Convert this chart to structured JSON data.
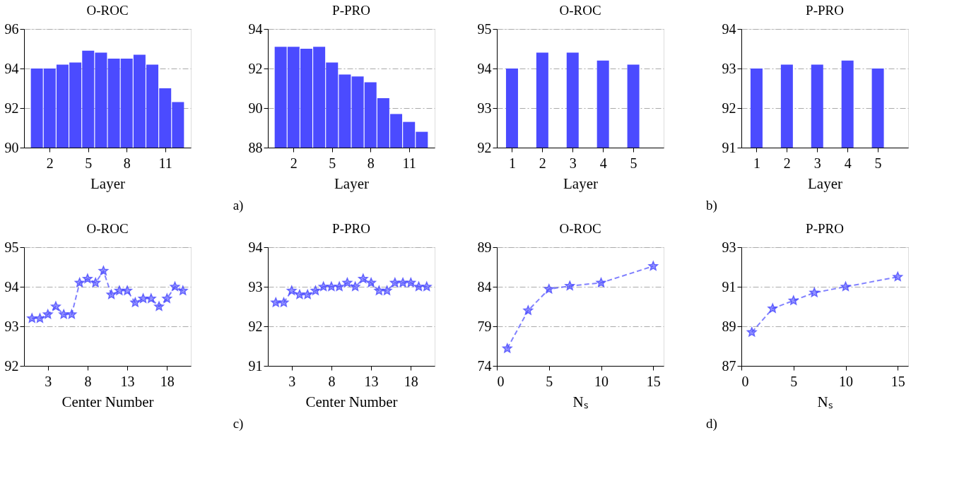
{
  "chart_data": [
    {
      "type": "bar",
      "title": "O-ROC",
      "xlabel": "Layer",
      "x": [
        1,
        2,
        3,
        4,
        5,
        6,
        7,
        8,
        9,
        10,
        11,
        12
      ],
      "xlim": [
        0,
        13
      ],
      "xticks": [
        2,
        5,
        8,
        11
      ],
      "ylim": [
        90,
        96
      ],
      "yticks": [
        90,
        92,
        94,
        96
      ],
      "grid": "y",
      "color": "#4b4bff",
      "values": [
        94.0,
        94.0,
        94.2,
        94.3,
        94.9,
        94.8,
        94.5,
        94.5,
        94.7,
        94.2,
        93.0,
        92.3
      ]
    },
    {
      "type": "bar",
      "title": "P-PRO",
      "xlabel": "Layer",
      "x": [
        1,
        2,
        3,
        4,
        5,
        6,
        7,
        8,
        9,
        10,
        11,
        12
      ],
      "xlim": [
        0,
        13
      ],
      "xticks": [
        2,
        5,
        8,
        11
      ],
      "ylim": [
        88,
        94
      ],
      "yticks": [
        88,
        90,
        92,
        94
      ],
      "grid": "y",
      "color": "#4b4bff",
      "values": [
        93.1,
        93.1,
        93.0,
        93.1,
        92.3,
        91.7,
        91.6,
        91.3,
        90.5,
        89.7,
        89.3,
        88.8
      ],
      "annotations": [
        "a)"
      ]
    },
    {
      "type": "bar",
      "title": "O-ROC",
      "xlabel": "Layer",
      "x": [
        1,
        2,
        3,
        4,
        5
      ],
      "xlim": [
        0.5,
        6
      ],
      "xticks": [
        1,
        2,
        3,
        4,
        5
      ],
      "ylim": [
        92,
        95
      ],
      "yticks": [
        92,
        93,
        94,
        95
      ],
      "grid": "y",
      "color": "#4b4bff",
      "values": [
        94.0,
        94.4,
        94.4,
        94.2,
        94.1
      ]
    },
    {
      "type": "bar",
      "title": "P-PRO",
      "xlabel": "Layer",
      "x": [
        1,
        2,
        3,
        4,
        5
      ],
      "xlim": [
        0.5,
        6
      ],
      "xticks": [
        1,
        2,
        3,
        4,
        5
      ],
      "ylim": [
        91,
        94
      ],
      "yticks": [
        91,
        92,
        93,
        94
      ],
      "grid": "y",
      "color": "#4b4bff",
      "values": [
        93.0,
        93.1,
        93.1,
        93.2,
        93.0
      ],
      "annotations": [
        "b)"
      ]
    },
    {
      "type": "line",
      "title": "O-ROC",
      "xlabel": "Center Number",
      "x": [
        1,
        2,
        3,
        4,
        5,
        6,
        7,
        8,
        9,
        10,
        11,
        12,
        13,
        14,
        15,
        16,
        17,
        18,
        19,
        20
      ],
      "xlim": [
        0,
        21
      ],
      "xticks": [
        3,
        8,
        13,
        18
      ],
      "ylim": [
        92,
        95
      ],
      "yticks": [
        92,
        93,
        94,
        95
      ],
      "grid": "y",
      "color": "#4b4bff",
      "marker": "star",
      "line_style": "dashed",
      "values": [
        93.2,
        93.2,
        93.3,
        93.5,
        93.3,
        93.3,
        94.1,
        94.2,
        94.1,
        94.4,
        93.8,
        93.9,
        93.9,
        93.6,
        93.7,
        93.7,
        93.5,
        93.7,
        94.0,
        93.9
      ]
    },
    {
      "type": "line",
      "title": "P-PRO",
      "xlabel": "Center Number",
      "x": [
        1,
        2,
        3,
        4,
        5,
        6,
        7,
        8,
        9,
        10,
        11,
        12,
        13,
        14,
        15,
        16,
        17,
        18,
        19,
        20
      ],
      "xlim": [
        0,
        21
      ],
      "xticks": [
        3,
        8,
        13,
        18
      ],
      "ylim": [
        91,
        94
      ],
      "yticks": [
        91,
        92,
        93,
        94
      ],
      "grid": "y",
      "color": "#4b4bff",
      "marker": "star",
      "line_style": "dashed",
      "values": [
        92.6,
        92.6,
        92.9,
        92.8,
        92.8,
        92.9,
        93.0,
        93.0,
        93.0,
        93.1,
        93.0,
        93.2,
        93.1,
        92.9,
        92.9,
        93.1,
        93.1,
        93.1,
        93.0,
        93.0
      ],
      "annotations": [
        "c)"
      ]
    },
    {
      "type": "line",
      "title": "O-ROC",
      "xlabel": "Nₛ",
      "x": [
        1,
        3,
        5,
        7,
        10,
        15
      ],
      "xlim": [
        0,
        16
      ],
      "xticks": [
        0,
        5,
        10,
        15
      ],
      "ylim": [
        74,
        89
      ],
      "yticks": [
        74,
        79,
        84,
        89
      ],
      "grid": "y",
      "color": "#4b4bff",
      "marker": "star",
      "line_style": "dashed",
      "values": [
        76.2,
        81.0,
        83.7,
        84.1,
        84.5,
        86.6
      ]
    },
    {
      "type": "line",
      "title": "P-PRO",
      "xlabel": "Nₛ",
      "x": [
        1,
        3,
        5,
        7,
        10,
        15
      ],
      "xlim": [
        0,
        16
      ],
      "xticks": [
        0,
        5,
        10,
        15
      ],
      "ylim": [
        87,
        93
      ],
      "yticks": [
        87,
        89,
        91,
        93
      ],
      "grid": "y",
      "color": "#4b4bff",
      "marker": "star",
      "line_style": "dashed",
      "values": [
        88.7,
        89.9,
        90.3,
        90.7,
        91.0,
        91.5
      ],
      "annotations": [
        "d)"
      ]
    }
  ]
}
